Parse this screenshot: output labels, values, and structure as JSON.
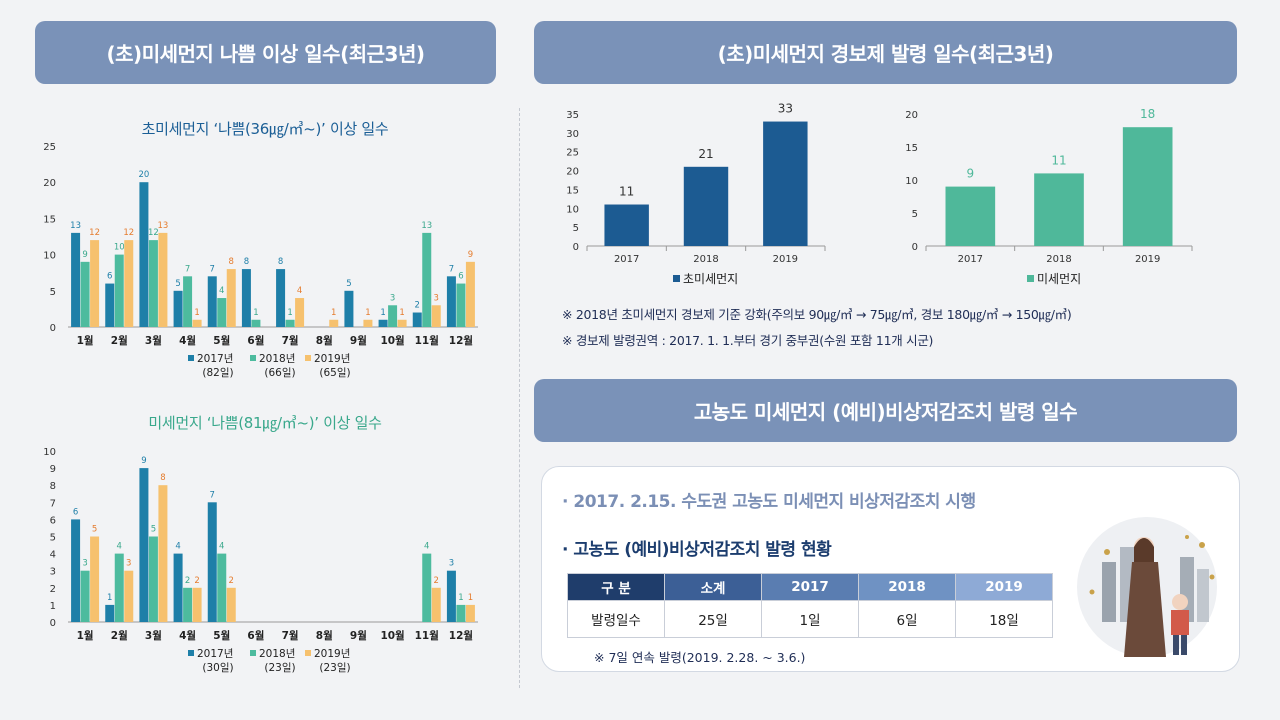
{
  "left": {
    "banner": "(초)미세먼지 나쁨 이상 일수(최근3년)",
    "pm25_title": "초미세먼지 ‘나쁨(36㎍/㎥~)’ 이상 일수",
    "pm10_title": "미세먼지 ‘나쁨(81㎍/㎥~)’ 이상 일수"
  },
  "right": {
    "banner": "(초)미세먼지 경보제 발령 일수(최근3년)",
    "note1": "※ 2018년 초미세먼지 경보제 기준 강화(주의보 90㎍/㎥ → 75㎍/㎥, 경보 180㎍/㎥ → 150㎍/㎥)",
    "note2": "※ 경보제 발령권역 : 2017. 1. 1.부터 경기 중부권(수원 포함 11개 시군)"
  },
  "emergency": {
    "banner": "고농도 미세먼지 (예비)비상저감조치 발령 일수",
    "line1": "· 2017. 2.15. 수도권 고농도 미세먼지 비상저감조치 시행",
    "line2": "· 고농도 (예비)비상저감조치 발령 현황",
    "table_headers": [
      "구 분",
      "소계",
      "2017",
      "2018",
      "2019"
    ],
    "table_row": [
      "발령일수",
      "25일",
      "1일",
      "6일",
      "18일"
    ],
    "footnote": "※ 7일 연속 발령(2019. 2.28. ~ 3.6.)"
  },
  "colors": {
    "banner": "#7a92b8",
    "s2017": "#1e7fa8",
    "s2018": "#4dbb9e",
    "s2019": "#f6c16e",
    "alarm_pm25": "#1c5b92",
    "alarm_pm10": "#4fb89a"
  },
  "chart_data": [
    {
      "type": "bar",
      "title": "초미세먼지 ‘나쁨(36㎍/㎥~)’ 이상 일수",
      "categories": [
        "1월",
        "2월",
        "3월",
        "4월",
        "5월",
        "6월",
        "7월",
        "8월",
        "9월",
        "10월",
        "11월",
        "12월"
      ],
      "series": [
        {
          "name": "2017년",
          "total": "(82일)",
          "values": [
            13,
            6,
            20,
            5,
            7,
            8,
            8,
            0,
            5,
            1,
            2,
            7
          ]
        },
        {
          "name": "2018년",
          "total": "(66일)",
          "values": [
            9,
            10,
            12,
            7,
            4,
            1,
            1,
            0,
            0,
            3,
            13,
            6
          ]
        },
        {
          "name": "2019년",
          "total": "(65일)",
          "values": [
            12,
            12,
            13,
            1,
            8,
            0,
            4,
            1,
            1,
            1,
            3,
            9
          ]
        }
      ],
      "ylim": [
        0,
        25
      ],
      "yticks": [
        0,
        5,
        10,
        15,
        20,
        25
      ],
      "legend": "bottom"
    },
    {
      "type": "bar",
      "title": "미세먼지 ‘나쁨(81㎍/㎥~)’ 이상 일수",
      "categories": [
        "1월",
        "2월",
        "3월",
        "4월",
        "5월",
        "6월",
        "7월",
        "8월",
        "9월",
        "10월",
        "11월",
        "12월"
      ],
      "series": [
        {
          "name": "2017년",
          "total": "(30일)",
          "values": [
            6,
            1,
            9,
            4,
            7,
            0,
            0,
            0,
            0,
            0,
            0,
            3
          ]
        },
        {
          "name": "2018년",
          "total": "(23일)",
          "values": [
            3,
            4,
            5,
            2,
            4,
            0,
            0,
            0,
            0,
            0,
            4,
            1
          ]
        },
        {
          "name": "2019년",
          "total": "(23일)",
          "values": [
            5,
            3,
            8,
            2,
            2,
            0,
            0,
            0,
            0,
            0,
            2,
            1
          ]
        }
      ],
      "ylim": [
        0,
        10
      ],
      "yticks": [
        0,
        1,
        2,
        3,
        4,
        5,
        6,
        7,
        8,
        9,
        10
      ],
      "legend": "bottom"
    },
    {
      "type": "bar",
      "categories": [
        "2017",
        "2018",
        "2019"
      ],
      "series": [
        {
          "name": "초미세먼지",
          "values": [
            11,
            21,
            33
          ]
        }
      ],
      "ylim": [
        0,
        35
      ],
      "yticks": [
        0,
        5,
        10,
        15,
        20,
        25,
        30,
        35
      ],
      "legend": "bottom"
    },
    {
      "type": "bar",
      "categories": [
        "2017",
        "2018",
        "2019"
      ],
      "series": [
        {
          "name": "미세먼지",
          "values": [
            9,
            11,
            18
          ]
        }
      ],
      "ylim": [
        0,
        20
      ],
      "yticks": [
        0,
        5,
        10,
        15,
        20
      ],
      "legend": "bottom"
    }
  ]
}
